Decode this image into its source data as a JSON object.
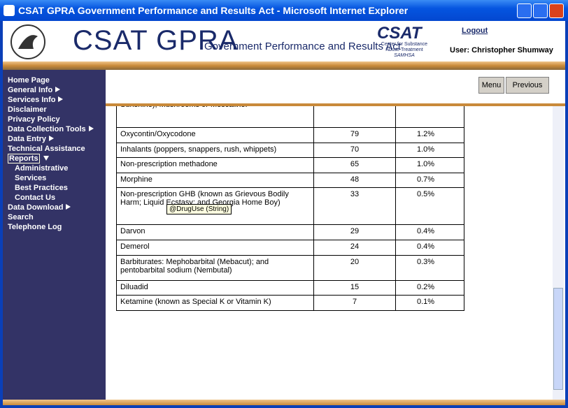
{
  "window": {
    "title": "CSAT GPRA Government Performance and Results Act - Microsoft Internet Explorer"
  },
  "header": {
    "title": "CSAT GPRA",
    "subtitle": "Government Performance and Results Act",
    "logo": {
      "name": "CSAT",
      "line1": "Center for Substance",
      "line2": "Abuse Treatment",
      "line3": "SAMHSA"
    },
    "logout": "Logout",
    "user": "User: Christopher Shumway"
  },
  "nav": [
    {
      "label": "Home Page",
      "sub": false
    },
    {
      "label": "General Info",
      "sub": false,
      "arrow": "right"
    },
    {
      "label": "Services Info",
      "sub": false,
      "arrow": "right"
    },
    {
      "label": "Disclaimer",
      "sub": false
    },
    {
      "label": "Privacy Policy",
      "sub": false
    },
    {
      "label": "Data Collection Tools",
      "sub": false,
      "arrow": "right"
    },
    {
      "label": "Data Entry",
      "sub": false,
      "arrow": "right"
    },
    {
      "label": "Technical Assistance",
      "sub": false
    },
    {
      "label": "Reports",
      "sub": false,
      "arrow": "down",
      "selected": true
    },
    {
      "label": "Administrative",
      "sub": true
    },
    {
      "label": "Services",
      "sub": true
    },
    {
      "label": "Best Practices",
      "sub": true
    },
    {
      "label": "Contact Us",
      "sub": true
    },
    {
      "label": "Data Download",
      "sub": false,
      "arrow": "right"
    },
    {
      "label": "Search",
      "sub": false
    },
    {
      "label": "Telephone Log",
      "sub": false
    }
  ],
  "toolbar": {
    "buttons": [
      "Menu",
      "Previous"
    ]
  },
  "table": {
    "rows": [
      [
        "Sunshine), Mushrooms or Mescaline.",
        "",
        ""
      ],
      [
        "Oxycontin/Oxycodone",
        "79",
        "1.2%"
      ],
      [
        "Inhalants (poppers, snappers, rush, whippets)",
        "70",
        "1.0%"
      ],
      [
        "Non-prescription methadone",
        "65",
        "1.0%"
      ],
      [
        "Morphine",
        "48",
        "0.7%"
      ],
      [
        "Non-prescription GHB (known as Grievous Bodily Harm; Liquid Ecstasy; and Georgia Home Boy)",
        "33",
        "0.5%"
      ],
      [
        "Darvon",
        "29",
        "0.4%"
      ],
      [
        "Demerol",
        "24",
        "0.4%"
      ],
      [
        "Barbiturates: Mephobarbital (Mebacut); and pentobarbital sodium (Nembutal)",
        "20",
        "0.3%"
      ],
      [
        "Diluadid",
        "15",
        "0.2%"
      ],
      [
        "Ketamine (known as Special K or Vitamin K)",
        "7",
        "0.1%"
      ]
    ]
  },
  "tooltip": "@DrugUse (String)"
}
